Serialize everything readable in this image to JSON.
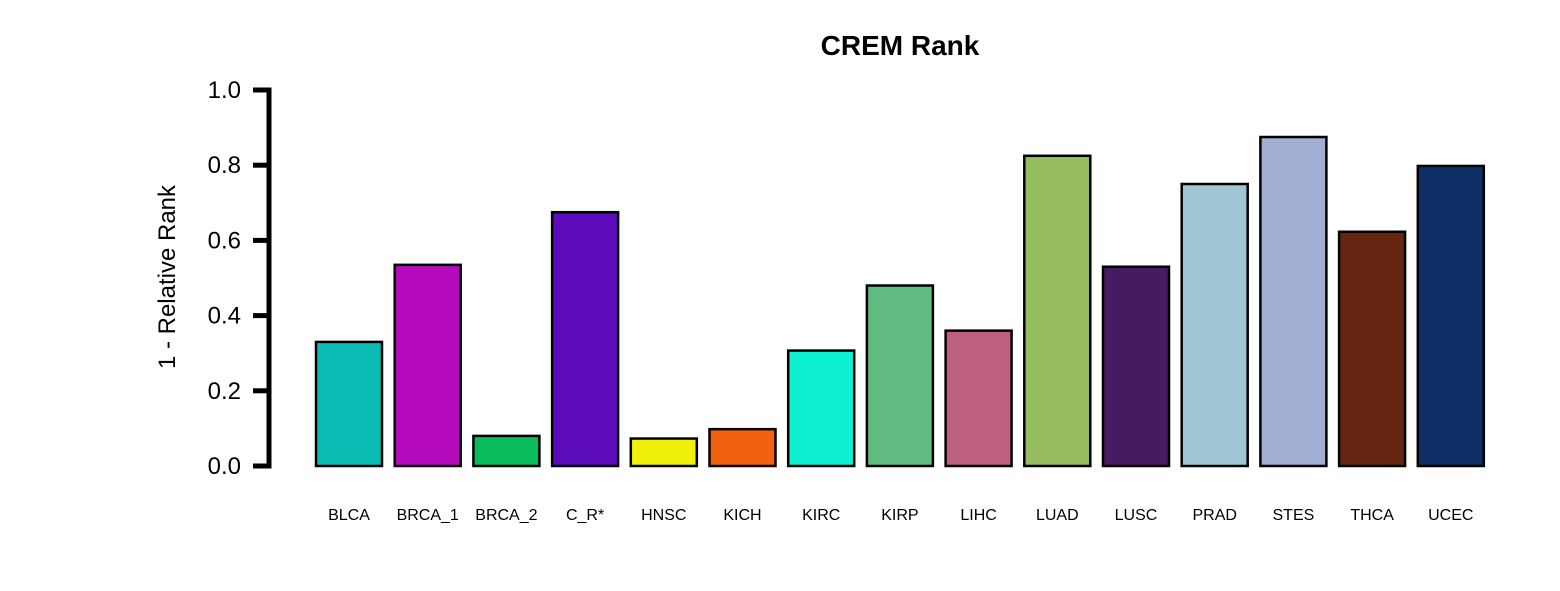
{
  "chart_data": {
    "type": "bar",
    "title": "CREM Rank",
    "xlabel": "",
    "ylabel": "1 - Relative Rank",
    "ylim": [
      0,
      1
    ],
    "yticks": [
      "0.0",
      "0.2",
      "0.4",
      "0.6",
      "0.8",
      "1.0"
    ],
    "grid": false,
    "legend": "none",
    "categories": [
      "BLCA",
      "BRCA_1",
      "BRCA_2",
      "C_R*",
      "HNSC",
      "KICH",
      "KIRC",
      "KIRP",
      "LIHC",
      "LUAD",
      "LUSC",
      "PRAD",
      "STES",
      "THCA",
      "UCEC"
    ],
    "values": [
      0.33,
      0.535,
      0.08,
      0.675,
      0.073,
      0.098,
      0.307,
      0.48,
      0.36,
      0.825,
      0.53,
      0.75,
      0.875,
      0.623,
      0.798
    ],
    "colors": [
      "#0BBCB5",
      "#B50BBC",
      "#0BBC5A",
      "#5B0BBC",
      "#F0F00B",
      "#F2620E",
      "#0EF0D2",
      "#61BC82",
      "#BD607E",
      "#97BD61",
      "#461B5F",
      "#A0C5D4",
      "#A0AED4",
      "#662510",
      "#0E2F66"
    ],
    "border_color": "#000000"
  }
}
